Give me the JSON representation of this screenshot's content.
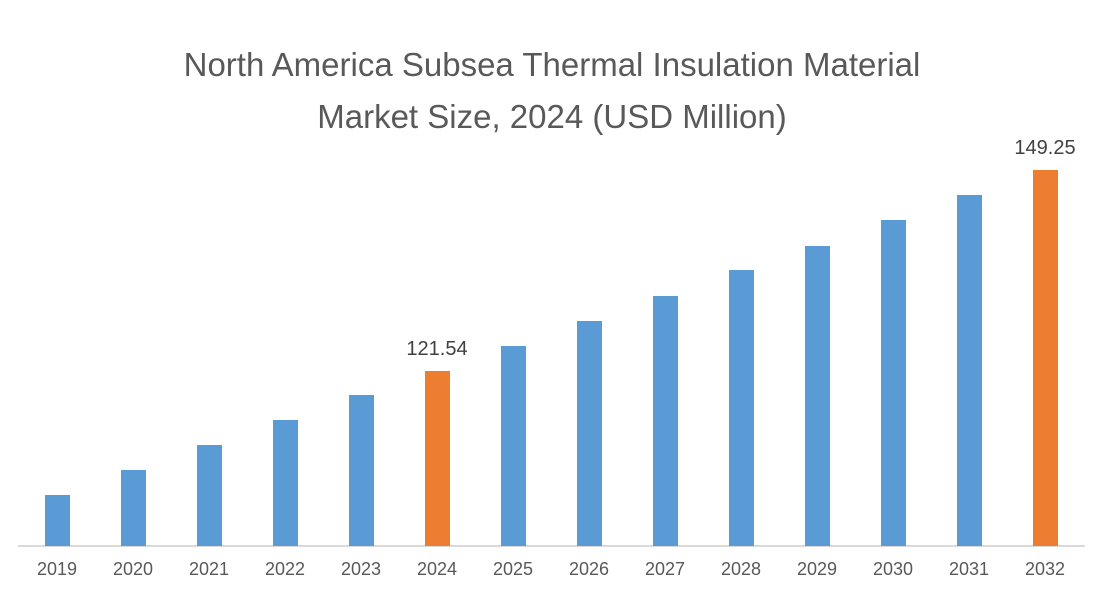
{
  "chart_data": {
    "type": "bar",
    "title": "North America Subsea Thermal Insulation Material Market Size, 2024 (USD Million)",
    "title_lines": [
      "North America Subsea Thermal Insulation Material",
      "Market Size, 2024 (USD Million)"
    ],
    "categories": [
      "2019",
      "2020",
      "2021",
      "2022",
      "2023",
      "2024",
      "2025",
      "2026",
      "2027",
      "2028",
      "2029",
      "2030",
      "2031",
      "2032"
    ],
    "values": [
      104.4,
      107.9,
      111.3,
      114.8,
      118.2,
      121.54,
      125.0,
      128.4,
      131.9,
      135.4,
      138.8,
      142.4,
      145.8,
      149.25
    ],
    "data_labels": [
      {
        "category": "2024",
        "text": "121.54"
      },
      {
        "category": "2032",
        "text": "149.25"
      }
    ],
    "highlighted_categories": [
      "2024",
      "2032"
    ],
    "xlabel": "",
    "ylabel": "",
    "axes": {
      "y_axis_visible": false,
      "gridlines": false,
      "legend": "none",
      "baseline_value": 97.4,
      "implied_ylim": [
        97.4,
        160
      ]
    },
    "colors": {
      "bar": "#5B9BD5",
      "highlight": "#ED7D31",
      "title_text": "#595959",
      "axis_label_text": "#595959",
      "data_label_text": "#404040",
      "baseline": "#D9D9D9"
    }
  }
}
